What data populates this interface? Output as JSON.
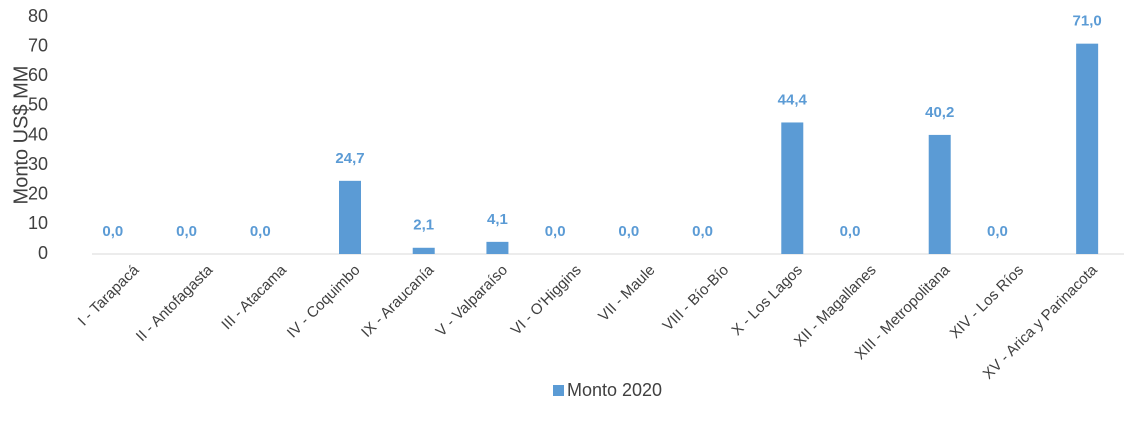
{
  "chart_data": {
    "type": "bar",
    "y_axis_label": "Monto US$ MM",
    "categories": [
      "I - Tarapacá",
      "II - Antofagasta",
      "III - Atacama",
      "IV - Coquimbo",
      "IX - Araucanía",
      "V - Valparaíso",
      "VI - O'Higgins",
      "VII - Maule",
      "VIII -  Bío-Bío",
      "X - Los Lagos",
      "XII - Magallanes",
      "XIII - Metropolitana",
      "XIV - Los Ríos",
      "XV - Arica y Parinacota"
    ],
    "series": [
      {
        "name": "Monto 2020",
        "color": "#5b9bd5",
        "values": [
          0,
          0,
          0,
          24.7,
          2.1,
          4.1,
          0,
          0,
          0,
          44.4,
          0,
          40.2,
          0,
          71.0
        ],
        "value_labels": [
          "0,0",
          "0,0",
          "0,0",
          "24,7",
          "2,1",
          "4,1",
          "0,0",
          "0,0",
          "0,0",
          "44,4",
          "0,0",
          "40,2",
          "0,0",
          "71,0"
        ]
      }
    ],
    "ylim": [
      0,
      80
    ],
    "yticks": [
      0,
      10,
      20,
      30,
      40,
      50,
      60,
      70,
      80
    ],
    "grid": false,
    "legend": "bottom"
  }
}
